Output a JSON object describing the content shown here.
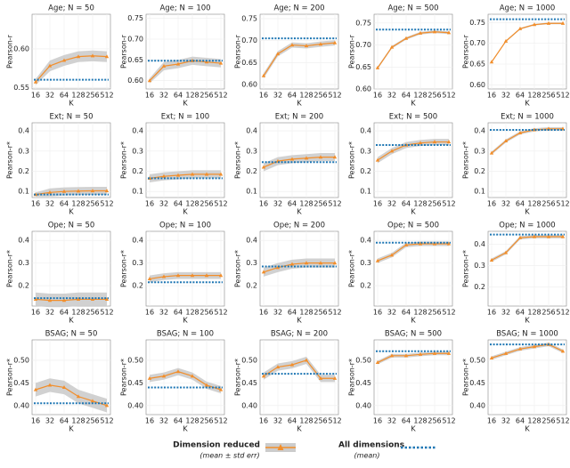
{
  "chart_data": [
    {
      "type": "line",
      "title": "Age; N = 50",
      "xlabel": "K",
      "ylabel": "Pearson-r",
      "categories": [
        16,
        32,
        64,
        128,
        256,
        512
      ],
      "ylim": [
        0.548,
        0.645
      ],
      "yticks": [
        0.55,
        {
          "value": 0.6,
          "label": "0.60"
        }
      ],
      "grid": true,
      "series": [
        {
          "name": "Dimension reduced",
          "color": "#f28e2b",
          "band_color": "#cccccc",
          "values": [
            0.557,
            0.578,
            0.585,
            0.59,
            0.591,
            0.59
          ],
          "errors": [
            0.004,
            0.007,
            0.007,
            0.007,
            0.007,
            0.007
          ]
        },
        {
          "name": "All dimensions",
          "color": "#1f77b4",
          "value": 0.56
        }
      ]
    },
    {
      "type": "line",
      "title": "Age; N = 100",
      "xlabel": "K",
      "ylabel": "Pearson-r",
      "categories": [
        16,
        32,
        64,
        128,
        256,
        512
      ],
      "ylim": [
        0.58,
        0.76
      ],
      "yticks": [
        {
          "value": 0.6,
          "label": "0.60"
        },
        0.65,
        {
          "value": 0.7,
          "label": "0.70"
        },
        0.75
      ],
      "grid": true,
      "series": [
        {
          "name": "Dimension reduced",
          "color": "#f28e2b",
          "band_color": "#cccccc",
          "values": [
            0.6,
            0.635,
            0.64,
            0.648,
            0.645,
            0.642
          ],
          "errors": [
            0.006,
            0.01,
            0.01,
            0.01,
            0.01,
            0.01
          ]
        },
        {
          "name": "All dimensions",
          "color": "#1f77b4",
          "value": 0.648
        }
      ]
    },
    {
      "type": "line",
      "title": "Age; N = 200",
      "xlabel": "K",
      "ylabel": "Pearson-r",
      "categories": [
        16,
        32,
        64,
        128,
        256,
        512
      ],
      "ylim": [
        0.59,
        0.76
      ],
      "yticks": [
        {
          "value": 0.6,
          "label": "0.60"
        },
        0.65,
        {
          "value": 0.7,
          "label": "0.70"
        },
        0.75
      ],
      "grid": true,
      "series": [
        {
          "name": "Dimension reduced",
          "color": "#f28e2b",
          "band_color": "#cccccc",
          "values": [
            0.62,
            0.67,
            0.69,
            0.688,
            0.692,
            0.695
          ],
          "errors": [
            0.006,
            0.006,
            0.006,
            0.006,
            0.006,
            0.006
          ]
        },
        {
          "name": "All dimensions",
          "color": "#1f77b4",
          "value": 0.705
        }
      ]
    },
    {
      "type": "line",
      "title": "Age; N = 500",
      "xlabel": "K",
      "ylabel": "Pearson-r",
      "categories": [
        16,
        32,
        64,
        128,
        256,
        512
      ],
      "ylim": [
        0.6,
        0.77
      ],
      "yticks": [
        {
          "value": 0.6,
          "label": "0.60"
        },
        0.65,
        {
          "value": 0.7,
          "label": "0.70"
        },
        0.75
      ],
      "grid": true,
      "series": [
        {
          "name": "Dimension reduced",
          "color": "#f28e2b",
          "band_color": "#cccccc",
          "values": [
            0.648,
            0.695,
            0.715,
            0.727,
            0.73,
            0.728
          ],
          "errors": [
            0.003,
            0.003,
            0.003,
            0.003,
            0.003,
            0.003
          ]
        },
        {
          "name": "All dimensions",
          "color": "#1f77b4",
          "value": 0.735
        }
      ]
    },
    {
      "type": "line",
      "title": "Age; N = 1000",
      "xlabel": "K",
      "ylabel": "Pearson-r",
      "categories": [
        16,
        32,
        64,
        128,
        256,
        512
      ],
      "ylim": [
        0.59,
        0.77
      ],
      "yticks": [
        {
          "value": 0.6,
          "label": "0.60"
        },
        0.65,
        {
          "value": 0.7,
          "label": "0.70"
        },
        0.75
      ],
      "grid": true,
      "series": [
        {
          "name": "Dimension reduced",
          "color": "#f28e2b",
          "band_color": "#cccccc",
          "values": [
            0.655,
            0.705,
            0.735,
            0.745,
            0.748,
            0.748
          ],
          "errors": [
            0.002,
            0.002,
            0.002,
            0.002,
            0.002,
            0.002
          ]
        },
        {
          "name": "All dimensions",
          "color": "#1f77b4",
          "value": 0.758
        }
      ]
    },
    {
      "type": "line",
      "title": "Ext; N = 50",
      "xlabel": "K",
      "ylabel": "Pearson-r*",
      "categories": [
        16,
        32,
        64,
        128,
        256,
        512
      ],
      "ylim": [
        0.07,
        0.44
      ],
      "yticks": [
        0.1,
        0.2,
        0.3,
        0.4
      ],
      "grid": true,
      "series": [
        {
          "name": "Dimension reduced",
          "color": "#f28e2b",
          "band_color": "#cccccc",
          "values": [
            0.085,
            0.095,
            0.1,
            0.102,
            0.103,
            0.103
          ],
          "errors": [
            0.01,
            0.02,
            0.02,
            0.02,
            0.02,
            0.02
          ]
        },
        {
          "name": "All dimensions",
          "color": "#1f77b4",
          "value": 0.085
        }
      ]
    },
    {
      "type": "line",
      "title": "Ext; N = 100",
      "xlabel": "K",
      "ylabel": "Pearson-r*",
      "categories": [
        16,
        32,
        64,
        128,
        256,
        512
      ],
      "ylim": [
        0.07,
        0.44
      ],
      "yticks": [
        0.1,
        0.2,
        0.3,
        0.4
      ],
      "grid": true,
      "series": [
        {
          "name": "Dimension reduced",
          "color": "#f28e2b",
          "band_color": "#cccccc",
          "values": [
            0.165,
            0.175,
            0.18,
            0.185,
            0.185,
            0.185
          ],
          "errors": [
            0.02,
            0.02,
            0.02,
            0.02,
            0.02,
            0.02
          ]
        },
        {
          "name": "All dimensions",
          "color": "#1f77b4",
          "value": 0.165
        }
      ]
    },
    {
      "type": "line",
      "title": "Ext; N = 200",
      "xlabel": "K",
      "ylabel": "Pearson-r*",
      "categories": [
        16,
        32,
        64,
        128,
        256,
        512
      ],
      "ylim": [
        0.07,
        0.44
      ],
      "yticks": [
        0.1,
        0.2,
        0.3,
        0.4
      ],
      "grid": true,
      "series": [
        {
          "name": "Dimension reduced",
          "color": "#f28e2b",
          "band_color": "#cccccc",
          "values": [
            0.22,
            0.25,
            0.26,
            0.265,
            0.27,
            0.27
          ],
          "errors": [
            0.02,
            0.02,
            0.02,
            0.02,
            0.02,
            0.02
          ]
        },
        {
          "name": "All dimensions",
          "color": "#1f77b4",
          "value": 0.245
        }
      ]
    },
    {
      "type": "line",
      "title": "Ext; N = 500",
      "xlabel": "K",
      "ylabel": "Pearson-r*",
      "categories": [
        16,
        32,
        64,
        128,
        256,
        512
      ],
      "ylim": [
        0.07,
        0.44
      ],
      "yticks": [
        0.1,
        0.2,
        0.3,
        0.4
      ],
      "grid": true,
      "series": [
        {
          "name": "Dimension reduced",
          "color": "#f28e2b",
          "band_color": "#cccccc",
          "values": [
            0.255,
            0.3,
            0.33,
            0.34,
            0.345,
            0.345
          ],
          "errors": [
            0.015,
            0.015,
            0.015,
            0.015,
            0.015,
            0.015
          ]
        },
        {
          "name": "All dimensions",
          "color": "#1f77b4",
          "value": 0.33
        }
      ]
    },
    {
      "type": "line",
      "title": "Ext; N = 1000",
      "xlabel": "K",
      "ylabel": "Pearson-r*",
      "categories": [
        16,
        32,
        64,
        128,
        256,
        512
      ],
      "ylim": [
        0.07,
        0.44
      ],
      "yticks": [
        0.1,
        0.2,
        0.3,
        0.4
      ],
      "grid": true,
      "series": [
        {
          "name": "Dimension reduced",
          "color": "#f28e2b",
          "band_color": "#cccccc",
          "values": [
            0.29,
            0.35,
            0.39,
            0.405,
            0.41,
            0.41
          ],
          "errors": [
            0.008,
            0.008,
            0.008,
            0.008,
            0.008,
            0.008
          ]
        },
        {
          "name": "All dimensions",
          "color": "#1f77b4",
          "value": 0.405
        }
      ]
    },
    {
      "type": "line",
      "title": "Ope; N = 50",
      "xlabel": "K",
      "ylabel": "Pearson-r*",
      "categories": [
        16,
        32,
        64,
        128,
        256,
        512
      ],
      "ylim": [
        0.11,
        0.44
      ],
      "yticks": [
        0.2,
        0.3,
        0.4
      ],
      "grid": true,
      "series": [
        {
          "name": "Dimension reduced",
          "color": "#f28e2b",
          "band_color": "#cccccc",
          "values": [
            0.14,
            0.135,
            0.135,
            0.14,
            0.14,
            0.14
          ],
          "errors": [
            0.03,
            0.03,
            0.03,
            0.03,
            0.03,
            0.03
          ]
        },
        {
          "name": "All dimensions",
          "color": "#1f77b4",
          "value": 0.145
        }
      ]
    },
    {
      "type": "line",
      "title": "Ope; N = 100",
      "xlabel": "K",
      "ylabel": "Pearson-r*",
      "categories": [
        16,
        32,
        64,
        128,
        256,
        512
      ],
      "ylim": [
        0.11,
        0.44
      ],
      "yticks": [
        0.2,
        0.3,
        0.4
      ],
      "grid": true,
      "series": [
        {
          "name": "Dimension reduced",
          "color": "#f28e2b",
          "band_color": "#cccccc",
          "values": [
            0.23,
            0.24,
            0.245,
            0.245,
            0.245,
            0.245
          ],
          "errors": [
            0.015,
            0.015,
            0.015,
            0.015,
            0.015,
            0.015
          ]
        },
        {
          "name": "All dimensions",
          "color": "#1f77b4",
          "value": 0.215
        }
      ]
    },
    {
      "type": "line",
      "title": "Ope; N = 200",
      "xlabel": "K",
      "ylabel": "Pearson-r*",
      "categories": [
        16,
        32,
        64,
        128,
        256,
        512
      ],
      "ylim": [
        0.11,
        0.44
      ],
      "yticks": [
        0.2,
        0.3,
        0.4
      ],
      "grid": true,
      "series": [
        {
          "name": "Dimension reduced",
          "color": "#f28e2b",
          "band_color": "#cccccc",
          "values": [
            0.26,
            0.28,
            0.295,
            0.3,
            0.3,
            0.3
          ],
          "errors": [
            0.02,
            0.02,
            0.02,
            0.02,
            0.02,
            0.02
          ]
        },
        {
          "name": "All dimensions",
          "color": "#1f77b4",
          "value": 0.285
        }
      ]
    },
    {
      "type": "line",
      "title": "Ope; N = 500",
      "xlabel": "K",
      "ylabel": "Pearson-r*",
      "categories": [
        16,
        32,
        64,
        128,
        256,
        512
      ],
      "ylim": [
        0.11,
        0.44
      ],
      "yticks": [
        0.2,
        0.3,
        0.4
      ],
      "grid": true,
      "series": [
        {
          "name": "Dimension reduced",
          "color": "#f28e2b",
          "band_color": "#cccccc",
          "values": [
            0.31,
            0.335,
            0.38,
            0.385,
            0.385,
            0.385
          ],
          "errors": [
            0.01,
            0.01,
            0.01,
            0.01,
            0.01,
            0.01
          ]
        },
        {
          "name": "All dimensions",
          "color": "#1f77b4",
          "value": 0.39
        }
      ]
    },
    {
      "type": "line",
      "title": "Ope; N = 1000",
      "xlabel": "K",
      "ylabel": "Pearson-r*",
      "categories": [
        16,
        32,
        64,
        128,
        256,
        512
      ],
      "ylim": [
        0.11,
        0.46
      ],
      "yticks": [
        0.2,
        0.3,
        0.4
      ],
      "grid": true,
      "series": [
        {
          "name": "Dimension reduced",
          "color": "#f28e2b",
          "band_color": "#cccccc",
          "values": [
            0.325,
            0.36,
            0.43,
            0.435,
            0.435,
            0.435
          ],
          "errors": [
            0.008,
            0.008,
            0.008,
            0.008,
            0.008,
            0.008
          ]
        },
        {
          "name": "All dimensions",
          "color": "#1f77b4",
          "value": 0.445
        }
      ]
    },
    {
      "type": "line",
      "title": "BSAG; N = 50",
      "xlabel": "K",
      "ylabel": "Pearson-r*",
      "categories": [
        16,
        32,
        64,
        128,
        256,
        512
      ],
      "ylim": [
        0.38,
        0.545
      ],
      "yticks": [
        {
          "value": 0.4,
          "label": "0.40"
        },
        0.45,
        {
          "value": 0.5,
          "label": "0.50"
        }
      ],
      "grid": true,
      "series": [
        {
          "name": "Dimension reduced",
          "color": "#f28e2b",
          "band_color": "#cccccc",
          "values": [
            0.435,
            0.445,
            0.44,
            0.42,
            0.41,
            0.4
          ],
          "errors": [
            0.015,
            0.015,
            0.015,
            0.015,
            0.015,
            0.015
          ]
        },
        {
          "name": "All dimensions",
          "color": "#1f77b4",
          "value": 0.405
        }
      ]
    },
    {
      "type": "line",
      "title": "BSAG; N = 100",
      "xlabel": "K",
      "ylabel": "Pearson-r*",
      "categories": [
        16,
        32,
        64,
        128,
        256,
        512
      ],
      "ylim": [
        0.38,
        0.545
      ],
      "yticks": [
        {
          "value": 0.4,
          "label": "0.40"
        },
        0.45,
        {
          "value": 0.5,
          "label": "0.50"
        }
      ],
      "grid": true,
      "series": [
        {
          "name": "Dimension reduced",
          "color": "#f28e2b",
          "band_color": "#cccccc",
          "values": [
            0.46,
            0.465,
            0.475,
            0.465,
            0.445,
            0.435
          ],
          "errors": [
            0.008,
            0.008,
            0.008,
            0.008,
            0.008,
            0.008
          ]
        },
        {
          "name": "All dimensions",
          "color": "#1f77b4",
          "value": 0.44
        }
      ]
    },
    {
      "type": "line",
      "title": "BSAG; N = 200",
      "xlabel": "K",
      "ylabel": "Pearson-r*",
      "categories": [
        16,
        32,
        64,
        128,
        256,
        512
      ],
      "ylim": [
        0.38,
        0.545
      ],
      "yticks": [
        {
          "value": 0.4,
          "label": "0.40"
        },
        0.45,
        {
          "value": 0.5,
          "label": "0.50"
        }
      ],
      "grid": true,
      "series": [
        {
          "name": "Dimension reduced",
          "color": "#f28e2b",
          "band_color": "#cccccc",
          "values": [
            0.465,
            0.485,
            0.49,
            0.5,
            0.46,
            0.46
          ],
          "errors": [
            0.008,
            0.008,
            0.008,
            0.008,
            0.008,
            0.008
          ]
        },
        {
          "name": "All dimensions",
          "color": "#1f77b4",
          "value": 0.47
        }
      ]
    },
    {
      "type": "line",
      "title": "BSAG; N = 500",
      "xlabel": "K",
      "ylabel": "Pearson-r*",
      "categories": [
        16,
        32,
        64,
        128,
        256,
        512
      ],
      "ylim": [
        0.38,
        0.545
      ],
      "yticks": [
        {
          "value": 0.4,
          "label": "0.40"
        },
        0.45,
        {
          "value": 0.5,
          "label": "0.50"
        }
      ],
      "grid": true,
      "series": [
        {
          "name": "Dimension reduced",
          "color": "#f28e2b",
          "band_color": "#cccccc",
          "values": [
            0.495,
            0.51,
            0.51,
            0.513,
            0.515,
            0.515
          ],
          "errors": [
            0.004,
            0.004,
            0.004,
            0.004,
            0.004,
            0.004
          ]
        },
        {
          "name": "All dimensions",
          "color": "#1f77b4",
          "value": 0.52
        }
      ]
    },
    {
      "type": "line",
      "title": "BSAG; N = 1000",
      "xlabel": "K",
      "ylabel": "Pearson-r*",
      "categories": [
        16,
        32,
        64,
        128,
        256,
        512
      ],
      "ylim": [
        0.38,
        0.545
      ],
      "yticks": [
        {
          "value": 0.4,
          "label": "0.40"
        },
        0.45,
        {
          "value": 0.5,
          "label": "0.50"
        }
      ],
      "grid": true,
      "series": [
        {
          "name": "Dimension reduced",
          "color": "#f28e2b",
          "band_color": "#cccccc",
          "values": [
            0.505,
            0.515,
            0.525,
            0.53,
            0.535,
            0.52
          ],
          "errors": [
            0.004,
            0.004,
            0.004,
            0.004,
            0.004,
            0.004
          ]
        },
        {
          "name": "All dimensions",
          "color": "#1f77b4",
          "value": 0.535
        }
      ]
    }
  ],
  "legend_notes": [
    "(mean ± std err)",
    "(mean)"
  ]
}
